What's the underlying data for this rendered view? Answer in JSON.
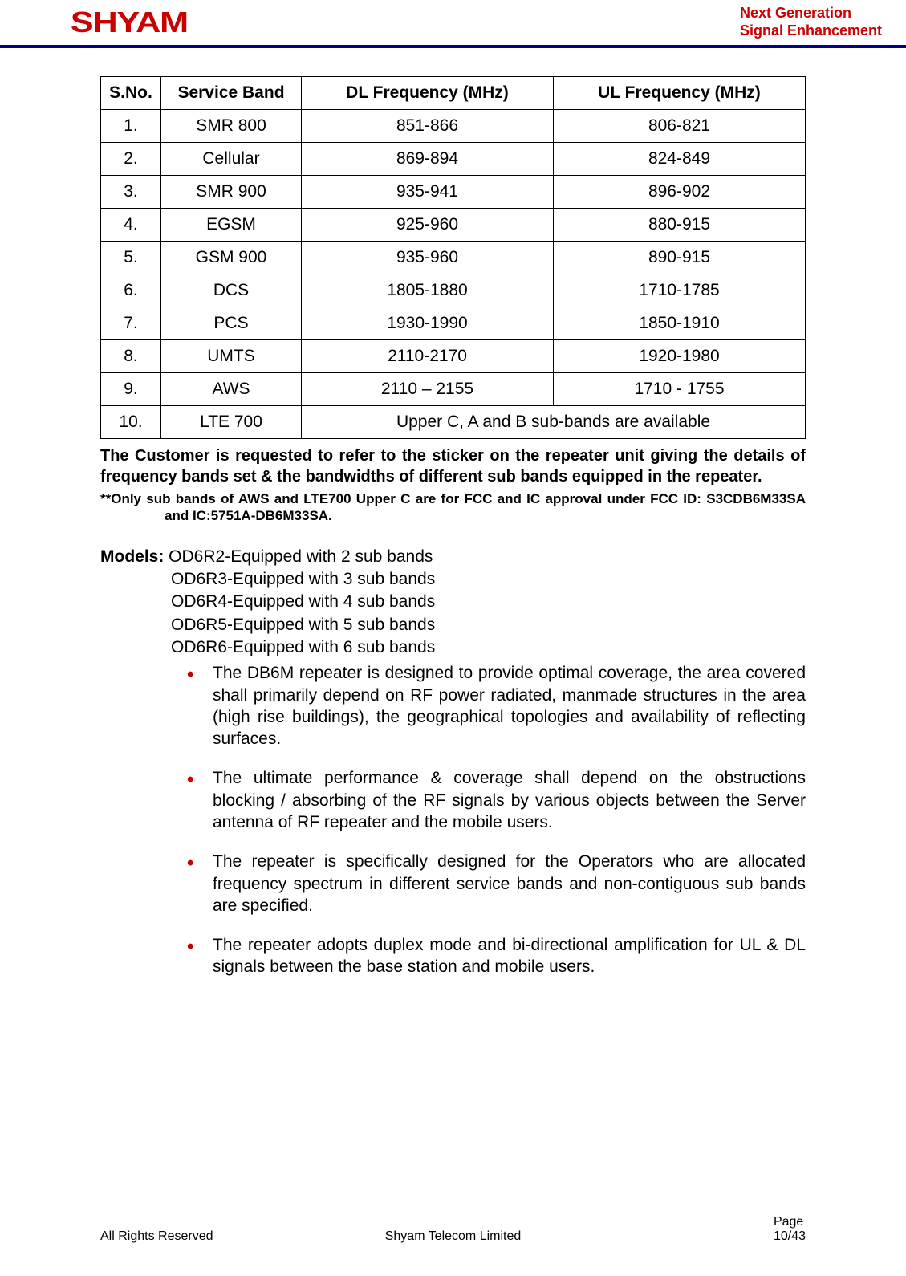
{
  "header": {
    "logo_text": "SHYAM",
    "tagline_line1": "Next Generation",
    "tagline_line2": "Signal Enhancement"
  },
  "table": {
    "columns": [
      "S.No.",
      "Service Band",
      "DL Frequency (MHz)",
      "UL Frequency (MHz)"
    ],
    "rows": [
      [
        "1.",
        "SMR 800",
        "851-866",
        "806-821"
      ],
      [
        "2.",
        "Cellular",
        "869-894",
        "824-849"
      ],
      [
        "3.",
        "SMR 900",
        "935-941",
        "896-902"
      ],
      [
        "4.",
        "EGSM",
        "925-960",
        "880-915"
      ],
      [
        "5.",
        "GSM 900",
        "935-960",
        "890-915"
      ],
      [
        "6.",
        "DCS",
        "1805-1880",
        "1710-1785"
      ],
      [
        "7.",
        "PCS",
        "1930-1990",
        "1850-1910"
      ],
      [
        "8.",
        "UMTS",
        "2110-2170",
        "1920-1980"
      ],
      [
        "9.",
        "AWS",
        "2110 – 2155",
        "1710 - 1755"
      ]
    ],
    "last_row": [
      "10.",
      "LTE 700",
      "Upper C, A and B sub-bands are available"
    ]
  },
  "customer_note": "The Customer is requested to refer to the sticker on the repeater unit giving the details of frequency bands set & the bandwidths of different sub bands equipped in the repeater.",
  "footnote": "**Only sub bands of AWS and LTE700 Upper C are for FCC and IC approval under FCC ID: S3CDB6M33SA and IC:5751A-DB6M33SA.",
  "models": {
    "label": "Models:",
    "items": [
      "OD6R2-Equipped with 2 sub bands",
      "OD6R3-Equipped with 3 sub bands",
      "OD6R4-Equipped with 4 sub bands",
      "OD6R5-Equipped with 5 sub bands",
      "OD6R6-Equipped with 6 sub bands"
    ]
  },
  "bullets": [
    "The DB6M repeater is designed to provide optimal coverage, the area covered shall primarily depend on RF power radiated, manmade structures in the area (high rise buildings), the geographical topologies and availability of reflecting surfaces.",
    "The ultimate performance & coverage shall depend on the obstructions blocking / absorbing of the RF signals by various objects between the Server antenna of RF repeater and the mobile users.",
    "The repeater is specifically designed for the Operators who are allocated frequency spectrum in different service bands and non-contiguous sub bands are specified.",
    "The repeater adopts duplex mode and bi-directional amplification for UL & DL signals between the base station and mobile users."
  ],
  "footer": {
    "left": "All Rights Reserved",
    "center_dot": ".",
    "center": "Shyam Telecom Limited",
    "right_label": "Page",
    "right_value": "10/43"
  }
}
